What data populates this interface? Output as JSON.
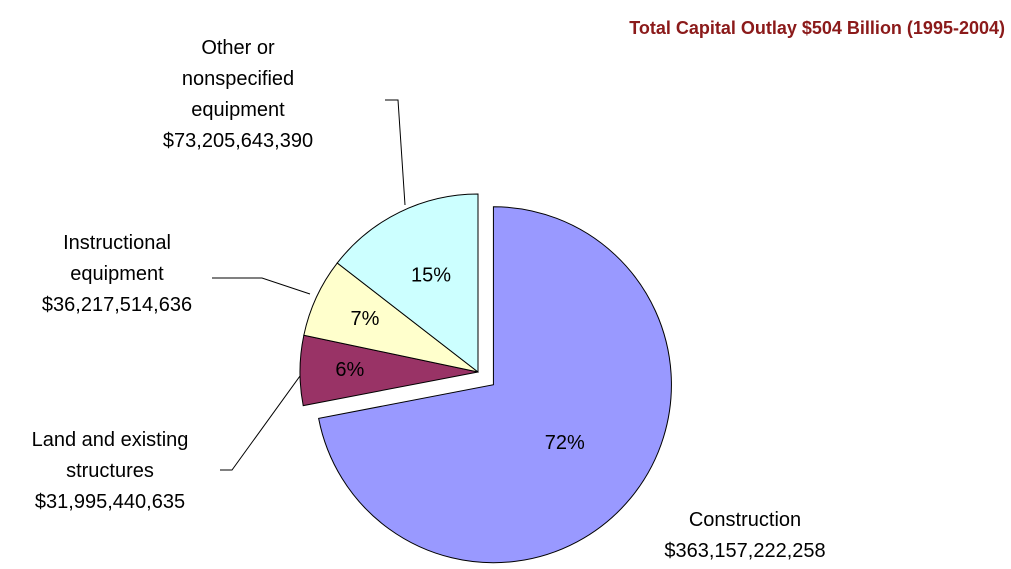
{
  "chart_data": {
    "type": "pie",
    "title": "Total Capital Outlay $504 Billion (1995-2004)",
    "categories": [
      "Construction",
      "Land and existing\nstructures",
      "Instructional\nequipment",
      "Other or\nnonspecified\nequipment"
    ],
    "values": [
      72,
      6,
      7,
      15
    ],
    "value_labels": [
      "72%",
      "6%",
      "7%",
      "15%"
    ],
    "amounts": [
      363157222258,
      31995440635,
      36217514636,
      73205643390
    ],
    "amount_labels": [
      "$363,157,222,258",
      "$31,995,440,635",
      "$36,217,514,636",
      "$73,205,643,390"
    ],
    "colors": [
      "#9999ff",
      "#993366",
      "#ffffcc",
      "#ccffff"
    ],
    "exploded": [
      true,
      false,
      false,
      false
    ]
  }
}
